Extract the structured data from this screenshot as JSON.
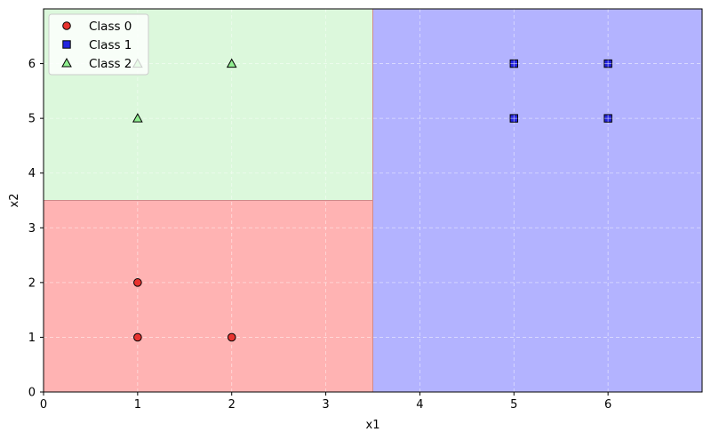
{
  "chart_data": {
    "type": "scatter",
    "title": "",
    "xlabel": "x1",
    "ylabel": "x2",
    "xlim": [
      0,
      7
    ],
    "ylim": [
      0,
      7
    ],
    "xticks": [
      0,
      1,
      2,
      3,
      4,
      5,
      6
    ],
    "yticks": [
      0,
      1,
      2,
      3,
      4,
      5,
      6
    ],
    "grid": true,
    "legend_position": "top-left",
    "regions": [
      {
        "class": "Class 0",
        "x": [
          0,
          3.5
        ],
        "y": [
          0,
          3.5
        ],
        "color": "#ffb3b3"
      },
      {
        "class": "Class 2",
        "x": [
          0,
          3.5
        ],
        "y": [
          3.5,
          7
        ],
        "color": "#dcf8dc"
      },
      {
        "class": "Class 1",
        "x": [
          3.5,
          7
        ],
        "y": [
          0,
          7
        ],
        "color": "#b3b3ff"
      }
    ],
    "series": [
      {
        "name": "Class 0",
        "marker": "circle",
        "color": "#e8332f",
        "points": [
          [
            1,
            1
          ],
          [
            1,
            2
          ],
          [
            2,
            1
          ]
        ]
      },
      {
        "name": "Class 1",
        "marker": "square",
        "color": "#2323e0",
        "points": [
          [
            5,
            5
          ],
          [
            5,
            6
          ],
          [
            6,
            5
          ],
          [
            6,
            6
          ]
        ]
      },
      {
        "name": "Class 2",
        "marker": "triangle",
        "color": "#90ee90",
        "points": [
          [
            1,
            5
          ],
          [
            1,
            6
          ],
          [
            2,
            6
          ]
        ]
      }
    ]
  }
}
